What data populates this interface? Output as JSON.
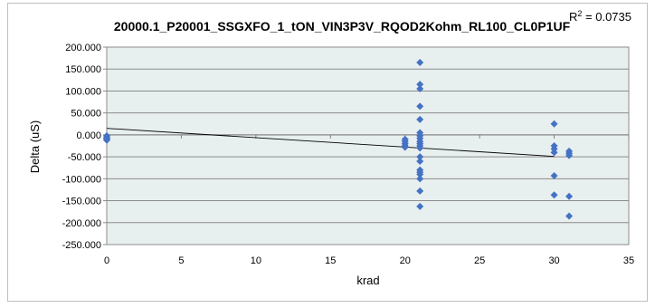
{
  "chart_data": {
    "type": "scatter",
    "title": "20000.1_P20001_SSGXFO_1_tON_VIN3P3V_RQOD2Kohm_RL100_CL0P1UF",
    "r2_label": "R",
    "r2_sup": "2",
    "r2_value": " = 0.0735",
    "xlabel": "krad",
    "ylabel": "Delta (uS)",
    "xlim": [
      0,
      35
    ],
    "ylim": [
      -250,
      200
    ],
    "x_ticks": [
      "0",
      "5",
      "10",
      "15",
      "20",
      "25",
      "30",
      "35"
    ],
    "y_ticks": [
      "200.000",
      "150.000",
      "100.000",
      "50.000",
      "0.000",
      "-50.000",
      "-100.000",
      "-150.000",
      "-200.000",
      "-250.000"
    ],
    "grid": true,
    "marker_color": "#4472c4",
    "plot_bg": "#e8efef",
    "series": [
      {
        "points": [
          [
            0,
            -2
          ],
          [
            0,
            -5
          ],
          [
            0,
            -8
          ],
          [
            0,
            -10
          ],
          [
            0,
            -12
          ],
          [
            20,
            -10
          ],
          [
            20,
            -15
          ],
          [
            20,
            -20
          ],
          [
            20,
            -25
          ],
          [
            20,
            -28
          ],
          [
            21,
            165
          ],
          [
            21,
            115
          ],
          [
            21,
            105
          ],
          [
            21,
            65
          ],
          [
            21,
            35
          ],
          [
            21,
            5
          ],
          [
            21,
            -2
          ],
          [
            21,
            -8
          ],
          [
            21,
            -15
          ],
          [
            21,
            -20
          ],
          [
            21,
            -25
          ],
          [
            21,
            -30
          ],
          [
            21,
            -50
          ],
          [
            21,
            -60
          ],
          [
            21,
            -80
          ],
          [
            21,
            -85
          ],
          [
            21,
            -90
          ],
          [
            21,
            -100
          ],
          [
            21,
            -128
          ],
          [
            21,
            -163
          ],
          [
            30,
            25
          ],
          [
            30,
            -25
          ],
          [
            30,
            -32
          ],
          [
            30,
            -40
          ],
          [
            30,
            -93
          ],
          [
            30,
            -137
          ],
          [
            31,
            -37
          ],
          [
            31,
            -42
          ],
          [
            31,
            -47
          ],
          [
            31,
            -140
          ],
          [
            31,
            -185
          ]
        ]
      }
    ],
    "trendline": {
      "x": [
        0,
        30
      ],
      "y": [
        14.9,
        -49.1
      ]
    }
  }
}
